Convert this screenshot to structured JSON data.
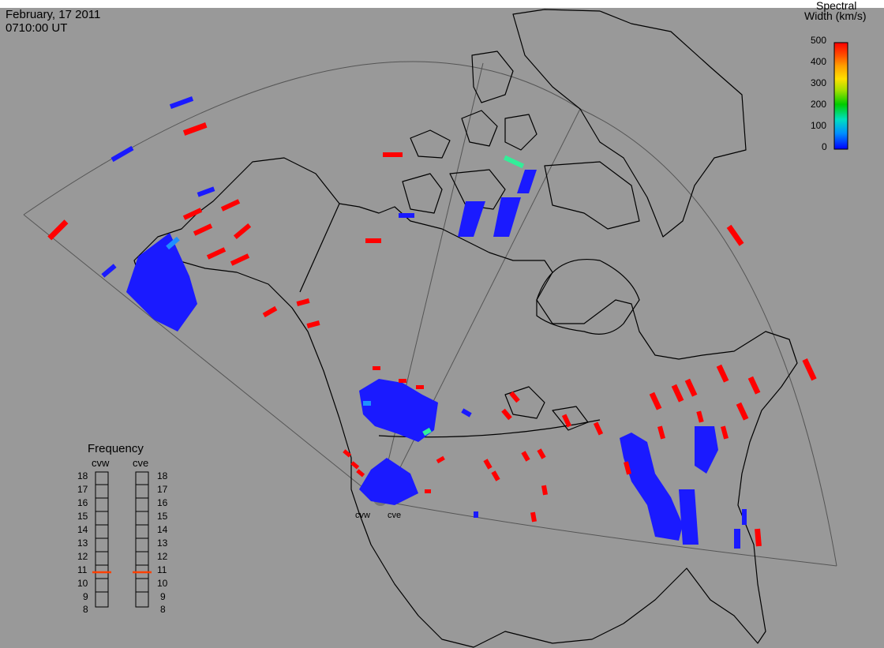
{
  "header": {
    "date": "February, 17 2011",
    "time": "0710:00 UT"
  },
  "colorbar": {
    "title_line1": "Spectral",
    "title_line2": "Width (km/s)",
    "ticks": [
      "500",
      "400",
      "300",
      "200",
      "100",
      "0"
    ],
    "colors": [
      "#0000ff",
      "#00a0ff",
      "#00e0c0",
      "#00cc00",
      "#a0e000",
      "#ffe000",
      "#ffa000",
      "#ff5000",
      "#ff0000"
    ]
  },
  "frequency_panel": {
    "title": "Frequency",
    "radars": [
      "cvw",
      "cve"
    ],
    "ticks": [
      "18",
      "17",
      "16",
      "15",
      "14",
      "13",
      "12",
      "11",
      "10",
      "9",
      "8"
    ],
    "selected": {
      "cvw": 10.8,
      "cve": 10.8
    },
    "marker_color": "#ff4000"
  },
  "stations": {
    "cvw": "cvw",
    "cve": "cve"
  },
  "colors": {
    "background": "#999999",
    "low_width": "#1a1aff",
    "high_width": "#ff0000",
    "mid_width": "#33ee99"
  }
}
